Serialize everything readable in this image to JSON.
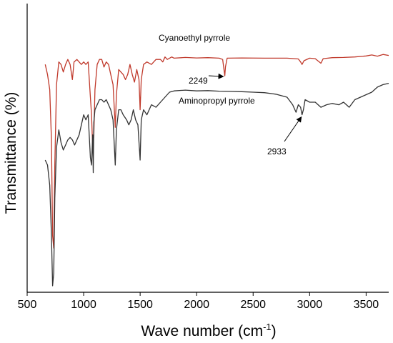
{
  "chart_data": {
    "type": "line",
    "xlabel": "Wave number (cm",
    "xlabel_sup": "-1",
    "xlabel_close": ")",
    "ylabel": "Transmittance (%)",
    "xlim": [
      500,
      3700
    ],
    "ylim": [
      0,
      100
    ],
    "x_ticks": [
      500,
      1000,
      1500,
      2000,
      2500,
      3000,
      3500
    ],
    "x_tick_labels": [
      "500",
      "1000",
      "1500",
      "2000",
      "2500",
      "3000",
      "3500"
    ],
    "grid": false,
    "series": [
      {
        "name": "Cyanoethyl pyrrole",
        "color": "#c0392b",
        "points": [
          [
            660,
            88
          ],
          [
            680,
            84
          ],
          [
            700,
            78
          ],
          [
            715,
            58
          ],
          [
            725,
            20
          ],
          [
            735,
            15
          ],
          [
            745,
            48
          ],
          [
            760,
            80
          ],
          [
            780,
            89
          ],
          [
            800,
            88
          ],
          [
            820,
            85
          ],
          [
            840,
            88
          ],
          [
            860,
            90
          ],
          [
            880,
            88
          ],
          [
            900,
            82
          ],
          [
            915,
            89
          ],
          [
            940,
            90
          ],
          [
            960,
            89
          ],
          [
            980,
            88
          ],
          [
            1000,
            89
          ],
          [
            1020,
            88
          ],
          [
            1040,
            89
          ],
          [
            1060,
            75
          ],
          [
            1070,
            68
          ],
          [
            1080,
            55
          ],
          [
            1090,
            60
          ],
          [
            1100,
            78
          ],
          [
            1120,
            88
          ],
          [
            1140,
            90
          ],
          [
            1160,
            90
          ],
          [
            1180,
            87
          ],
          [
            1200,
            89
          ],
          [
            1220,
            88
          ],
          [
            1240,
            84
          ],
          [
            1260,
            80
          ],
          [
            1280,
            63
          ],
          [
            1290,
            76
          ],
          [
            1310,
            86
          ],
          [
            1330,
            85
          ],
          [
            1350,
            84
          ],
          [
            1370,
            82
          ],
          [
            1390,
            84
          ],
          [
            1410,
            88
          ],
          [
            1430,
            84
          ],
          [
            1450,
            81
          ],
          [
            1470,
            86
          ],
          [
            1490,
            82
          ],
          [
            1500,
            70
          ],
          [
            1510,
            82
          ],
          [
            1530,
            88
          ],
          [
            1560,
            89
          ],
          [
            1600,
            88
          ],
          [
            1640,
            90
          ],
          [
            1680,
            90
          ],
          [
            1700,
            89
          ],
          [
            1720,
            91
          ],
          [
            1740,
            90
          ],
          [
            1780,
            91
          ],
          [
            1800,
            90.5
          ],
          [
            1900,
            90.8
          ],
          [
            2000,
            90.6
          ],
          [
            2100,
            90.7
          ],
          [
            2200,
            90.5
          ],
          [
            2230,
            90
          ],
          [
            2245,
            85
          ],
          [
            2249,
            83.5
          ],
          [
            2255,
            87
          ],
          [
            2270,
            90.5
          ],
          [
            2400,
            90.6
          ],
          [
            2600,
            90.5
          ],
          [
            2800,
            90.5
          ],
          [
            2900,
            90.2
          ],
          [
            2920,
            89
          ],
          [
            2933,
            88
          ],
          [
            2950,
            89.5
          ],
          [
            3000,
            90.5
          ],
          [
            3050,
            90.3
          ],
          [
            3100,
            88.5
          ],
          [
            3120,
            90.3
          ],
          [
            3200,
            90.7
          ],
          [
            3300,
            90.8
          ],
          [
            3400,
            91
          ],
          [
            3500,
            91.4
          ],
          [
            3550,
            91.8
          ],
          [
            3600,
            91.3
          ],
          [
            3650,
            92
          ],
          [
            3700,
            91.6
          ]
        ]
      },
      {
        "name": "Aminopropyl pyrrole",
        "color": "#333333",
        "points": [
          [
            660,
            50
          ],
          [
            680,
            48
          ],
          [
            700,
            40
          ],
          [
            715,
            20
          ],
          [
            725,
            0
          ],
          [
            735,
            5
          ],
          [
            745,
            35
          ],
          [
            760,
            55
          ],
          [
            780,
            62
          ],
          [
            800,
            57
          ],
          [
            820,
            54
          ],
          [
            840,
            56
          ],
          [
            860,
            58
          ],
          [
            880,
            59
          ],
          [
            900,
            58
          ],
          [
            920,
            56
          ],
          [
            940,
            58
          ],
          [
            960,
            60
          ],
          [
            980,
            64
          ],
          [
            1000,
            68
          ],
          [
            1020,
            66
          ],
          [
            1040,
            68
          ],
          [
            1060,
            51
          ],
          [
            1070,
            48
          ],
          [
            1080,
            60
          ],
          [
            1085,
            45
          ],
          [
            1090,
            65
          ],
          [
            1100,
            70
          ],
          [
            1120,
            72
          ],
          [
            1140,
            74
          ],
          [
            1160,
            74
          ],
          [
            1180,
            73
          ],
          [
            1200,
            74
          ],
          [
            1220,
            72
          ],
          [
            1240,
            70
          ],
          [
            1260,
            66
          ],
          [
            1280,
            48
          ],
          [
            1290,
            62
          ],
          [
            1310,
            70
          ],
          [
            1330,
            70
          ],
          [
            1350,
            68
          ],
          [
            1380,
            66
          ],
          [
            1400,
            64
          ],
          [
            1420,
            66
          ],
          [
            1440,
            70
          ],
          [
            1460,
            66
          ],
          [
            1480,
            64
          ],
          [
            1500,
            50
          ],
          [
            1510,
            66
          ],
          [
            1530,
            70
          ],
          [
            1560,
            68
          ],
          [
            1600,
            72
          ],
          [
            1640,
            71
          ],
          [
            1680,
            73
          ],
          [
            1720,
            75
          ],
          [
            1760,
            77
          ],
          [
            1800,
            77.5
          ],
          [
            1900,
            77.8
          ],
          [
            2000,
            77.5
          ],
          [
            2100,
            77.6
          ],
          [
            2200,
            77.4
          ],
          [
            2300,
            77.3
          ],
          [
            2400,
            77.2
          ],
          [
            2500,
            77
          ],
          [
            2600,
            76.8
          ],
          [
            2700,
            76.2
          ],
          [
            2800,
            75
          ],
          [
            2850,
            72
          ],
          [
            2880,
            69
          ],
          [
            2900,
            72
          ],
          [
            2920,
            71
          ],
          [
            2933,
            68
          ],
          [
            2945,
            70
          ],
          [
            2960,
            74
          ],
          [
            3000,
            73
          ],
          [
            3050,
            73
          ],
          [
            3100,
            71
          ],
          [
            3150,
            72
          ],
          [
            3200,
            72.5
          ],
          [
            3260,
            72
          ],
          [
            3300,
            73
          ],
          [
            3350,
            71
          ],
          [
            3400,
            74
          ],
          [
            3450,
            75
          ],
          [
            3500,
            76
          ],
          [
            3550,
            77
          ],
          [
            3600,
            79
          ],
          [
            3650,
            80
          ],
          [
            3700,
            80.5
          ]
        ]
      }
    ],
    "annotations": [
      {
        "text": "2249",
        "x": 2249,
        "y": 83.5
      },
      {
        "text": "2933",
        "x": 2933,
        "y": 68
      }
    ]
  }
}
